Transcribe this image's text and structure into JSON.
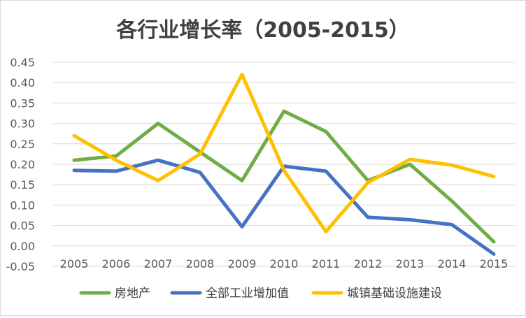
{
  "chart_data": {
    "type": "line",
    "title": "各行业增长率（2005-2015）",
    "xlabel": "",
    "ylabel": "",
    "categories": [
      "2005",
      "2006",
      "2007",
      "2008",
      "2009",
      "2010",
      "2011",
      "2012",
      "2013",
      "2014",
      "2015"
    ],
    "ylim": [
      -0.05,
      0.45
    ],
    "yticks": [
      "-0.05",
      "0.00",
      "0.05",
      "0.10",
      "0.15",
      "0.20",
      "0.25",
      "0.30",
      "0.35",
      "0.40",
      "0.45"
    ],
    "grid": true,
    "legend_position": "bottom",
    "series": [
      {
        "name": "房地产",
        "color": "#70ad47",
        "values": [
          0.21,
          0.22,
          0.3,
          0.23,
          0.16,
          0.33,
          0.28,
          0.16,
          0.2,
          0.11,
          0.01
        ]
      },
      {
        "name": "全部工业增加值",
        "color": "#4472c4",
        "values": [
          0.185,
          0.183,
          0.21,
          0.18,
          0.047,
          0.195,
          0.183,
          0.07,
          0.064,
          0.052,
          -0.02
        ]
      },
      {
        "name": "城镇基础设施建设",
        "color": "#ffc000",
        "values": [
          0.27,
          0.21,
          0.16,
          0.225,
          0.42,
          0.185,
          0.035,
          0.155,
          0.212,
          0.198,
          0.17
        ]
      }
    ]
  }
}
